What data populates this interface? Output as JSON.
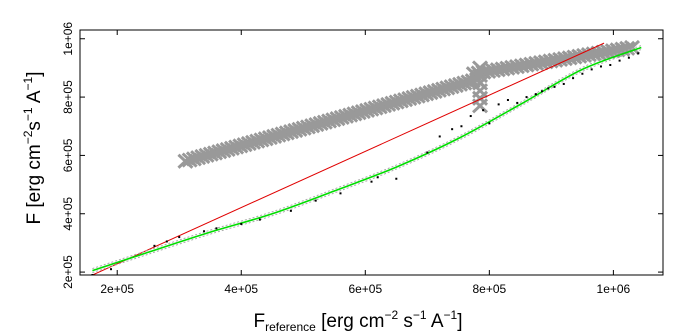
{
  "chart_data": {
    "type": "scatter",
    "title": "",
    "xlabel": {
      "main": "F",
      "sub": "reference",
      "rest1": " [erg cm",
      "sup1": "−2",
      "rest2": " s",
      "sup2": "−1",
      "rest3": " A",
      "sup3": "−1",
      "rest4": "]"
    },
    "ylabel": {
      "main": "F [erg cm",
      "sup1": "−2",
      "rest2": "s",
      "sup2": "−1",
      "rest3": " A",
      "sup3": "−1",
      "rest4": "]"
    },
    "xlim": [
      140000,
      1080000
    ],
    "ylim": [
      190000,
      1030000
    ],
    "xticks": [
      {
        "value": 200000,
        "label": "2e+05"
      },
      {
        "value": 400000,
        "label": "4e+05"
      },
      {
        "value": 600000,
        "label": "6e+05"
      },
      {
        "value": 800000,
        "label": "8e+05"
      },
      {
        "value": 1000000,
        "label": "1e+06"
      }
    ],
    "yticks": [
      {
        "value": 200000,
        "label": "2e+05"
      },
      {
        "value": 400000,
        "label": "4e+05"
      },
      {
        "value": 600000,
        "label": "6e+05"
      },
      {
        "value": 800000,
        "label": "8e+05"
      },
      {
        "value": 1000000,
        "label": "1e+06"
      }
    ],
    "grid": false,
    "legend": "none",
    "colors": {
      "markers_x": "#999999",
      "points": "#000000",
      "identity_line": "#e00000",
      "fit_line": "#00dd00",
      "fit_band": "#aaaaaa"
    },
    "series": [
      {
        "kind": "x-markers",
        "x_from": 310000,
        "y_from": 580000,
        "x_to": 780000,
        "y_to": 860000,
        "count": 70
      },
      {
        "kind": "x-markers",
        "x_from": 775000,
        "y_from": 880000,
        "x_to": 1030000,
        "y_to": 970000,
        "count": 34
      },
      {
        "kind": "x-markers",
        "x_from": 785000,
        "y_from": 770000,
        "x_to": 785000,
        "y_to": 900000,
        "count": 6
      },
      {
        "kind": "points",
        "x": [
          160000,
          190000,
          260000,
          280000,
          300000,
          340000,
          360000,
          400000,
          430000,
          480000,
          520000,
          560000,
          610000,
          620000,
          650000,
          700000,
          720000,
          740000,
          755000,
          770000,
          790000,
          800000,
          815000,
          830000,
          845000,
          860000,
          875000,
          885000,
          895000,
          905000,
          920000,
          935000,
          950000,
          965000,
          980000,
          995000,
          1010000,
          1025000,
          1040000
        ],
        "y": [
          190000,
          210000,
          290000,
          305000,
          320000,
          340000,
          350000,
          365000,
          380000,
          410000,
          445000,
          470000,
          510000,
          525000,
          520000,
          610000,
          665000,
          690000,
          700000,
          735000,
          755000,
          710000,
          775000,
          790000,
          780000,
          800000,
          810000,
          820000,
          830000,
          835000,
          845000,
          865000,
          880000,
          895000,
          905000,
          910000,
          925000,
          935000,
          950000
        ]
      },
      {
        "kind": "line",
        "name": "",
        "x": [
          155000,
          985000
        ],
        "y": [
          185000,
          985000
        ]
      },
      {
        "kind": "fit",
        "x": [
          160000,
          250000,
          350000,
          450000,
          550000,
          650000,
          750000,
          850000,
          950000,
          1045000
        ],
        "y": [
          205000,
          268000,
          337000,
          400000,
          478000,
          560000,
          658000,
          775000,
          895000,
          970000
        ]
      }
    ]
  }
}
